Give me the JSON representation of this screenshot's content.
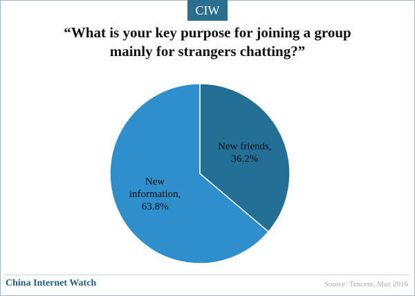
{
  "badge": "CIW",
  "chart_data": {
    "type": "pie",
    "title": "“What is your key purpose for joining a group mainly for strangers chatting?”",
    "categories": [
      "New friends,",
      "New information,"
    ],
    "values": [
      36.2,
      63.8
    ],
    "value_labels": [
      "36.2%",
      "63.8%"
    ],
    "colors": [
      "#236f96",
      "#2e8fcc"
    ]
  },
  "footer": {
    "brand": "China Internet Watch",
    "source": "Source: Tencent, May 2016"
  }
}
